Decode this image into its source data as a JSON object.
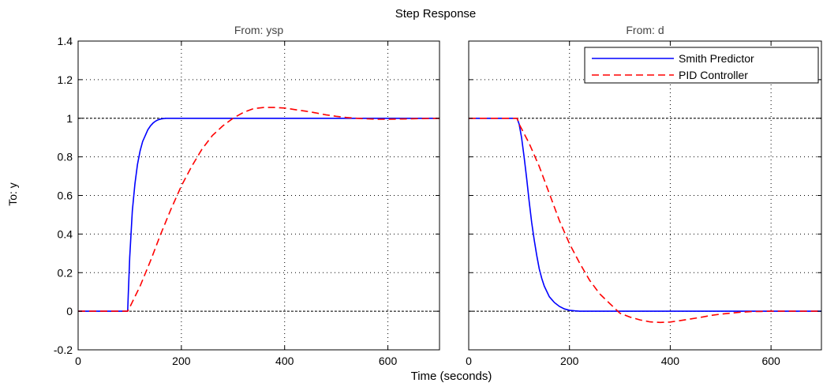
{
  "chart_data": {
    "title": "Step Response",
    "xlabel": "Time (seconds)",
    "ylabel": "To: y",
    "type": "line",
    "grid": true,
    "ylim": [
      -0.2,
      1.4
    ],
    "yticks": [
      -0.2,
      0,
      0.2,
      0.4,
      0.6,
      0.8,
      1,
      1.2,
      1.4
    ],
    "ytick_labels": [
      "-0.2",
      "0",
      "0.2",
      "0.4",
      "0.6",
      "0.8",
      "1",
      "1.2",
      "1.4"
    ],
    "legend": {
      "placement": "top-right",
      "panel": 1
    },
    "colors": {
      "smith": "#0000ff",
      "pid": "#ff0000",
      "grid": "#000000",
      "axes": "#000000"
    },
    "reference_lines": [
      1,
      0
    ],
    "panels": [
      {
        "title": "From: ysp",
        "xlim": [
          0,
          700
        ],
        "xticks": [
          0,
          200,
          400,
          600
        ],
        "xtick_labels": [
          "0",
          "200",
          "400",
          "600"
        ],
        "series": [
          {
            "name": "Smith Predictor",
            "style": "solid",
            "x": [
              0,
              96,
              97,
              100,
              105,
              110,
              115,
              120,
              125,
              130,
              135,
              140,
              145,
              150,
              155,
              160,
              165,
              170,
              180,
              200,
              300,
              400,
              500,
              600,
              700
            ],
            "y": [
              0,
              0,
              0.08,
              0.28,
              0.52,
              0.66,
              0.76,
              0.83,
              0.88,
              0.91,
              0.94,
              0.96,
              0.975,
              0.985,
              0.992,
              0.996,
              0.998,
              1,
              1,
              1,
              1,
              1,
              1,
              1,
              1
            ]
          },
          {
            "name": "PID Controller",
            "style": "dashed",
            "x": [
              0,
              96,
              100,
              120,
              140,
              160,
              180,
              200,
              220,
              240,
              260,
              280,
              300,
              320,
              340,
              360,
              380,
              400,
              420,
              440,
              460,
              480,
              500,
              520,
              540,
              560,
              580,
              600,
              620,
              640,
              660,
              680,
              700
            ],
            "y": [
              0,
              0,
              0.02,
              0.13,
              0.26,
              0.4,
              0.53,
              0.65,
              0.75,
              0.84,
              0.91,
              0.96,
              1,
              1.03,
              1.05,
              1.056,
              1.056,
              1.053,
              1.045,
              1.037,
              1.028,
              1.018,
              1.01,
              1.004,
              1,
              0.997,
              0.995,
              0.995,
              0.996,
              0.997,
              0.998,
              0.999,
              1
            ]
          }
        ]
      },
      {
        "title": "From: d",
        "xlim": [
          0,
          700
        ],
        "xticks": [
          0,
          200,
          400,
          600
        ],
        "xtick_labels": [
          "0",
          "200",
          "400",
          "600"
        ],
        "series": [
          {
            "name": "Smith Predictor",
            "style": "solid",
            "x": [
              0,
              96,
              100,
              105,
              110,
              115,
              120,
              125,
              130,
              135,
              140,
              145,
              150,
              160,
              170,
              180,
              190,
              200,
              210,
              220,
              230,
              300,
              400,
              500,
              600,
              700
            ],
            "y": [
              1,
              1,
              0.97,
              0.9,
              0.8,
              0.69,
              0.57,
              0.46,
              0.37,
              0.29,
              0.22,
              0.17,
              0.13,
              0.075,
              0.045,
              0.025,
              0.012,
              0.005,
              0.002,
              0,
              0,
              0,
              0,
              0,
              0,
              0
            ]
          },
          {
            "name": "PID Controller",
            "style": "dashed",
            "x": [
              0,
              96,
              100,
              120,
              140,
              160,
              180,
              200,
              220,
              240,
              260,
              280,
              300,
              320,
              340,
              360,
              380,
              400,
              420,
              440,
              460,
              480,
              500,
              520,
              540,
              560,
              580,
              600,
              620,
              640,
              660,
              680,
              700
            ],
            "y": [
              1,
              1,
              0.97,
              0.87,
              0.75,
              0.61,
              0.47,
              0.35,
              0.25,
              0.16,
              0.09,
              0.04,
              -0.01,
              -0.03,
              -0.045,
              -0.055,
              -0.058,
              -0.056,
              -0.048,
              -0.04,
              -0.032,
              -0.022,
              -0.015,
              -0.01,
              -0.005,
              -0.002,
              -0.001,
              0,
              0,
              0,
              0,
              0,
              0
            ]
          }
        ]
      }
    ]
  }
}
